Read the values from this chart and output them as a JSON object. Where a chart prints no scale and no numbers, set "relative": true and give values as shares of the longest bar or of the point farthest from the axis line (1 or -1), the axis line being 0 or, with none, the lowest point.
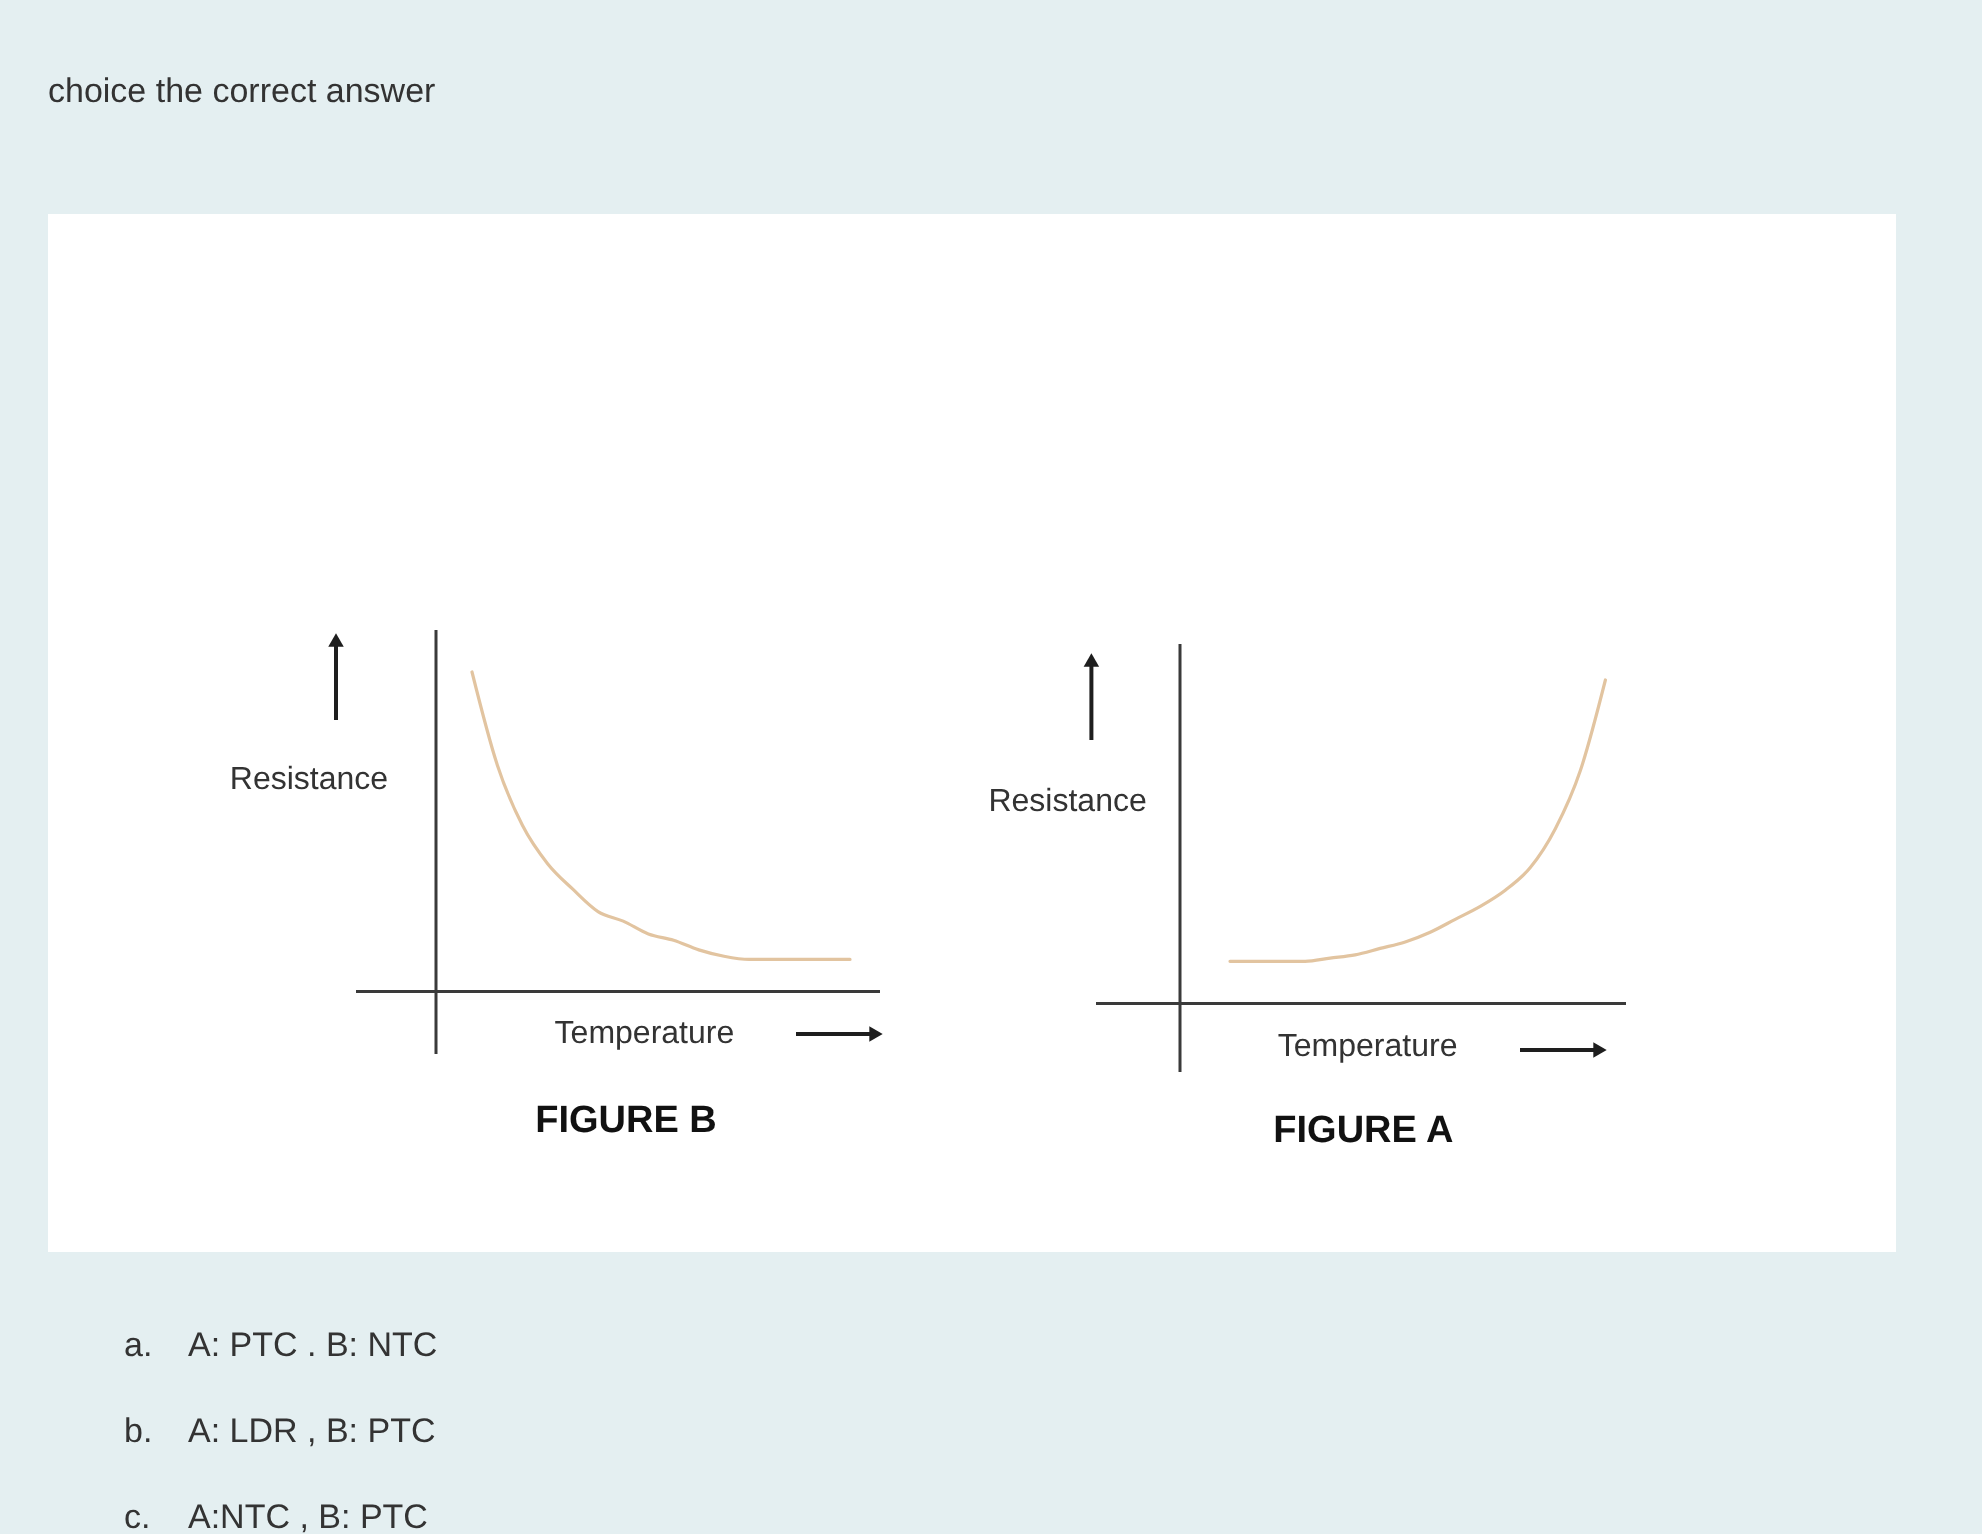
{
  "chart_data": [
    {
      "type": "other",
      "annotations": [
        "choice the correct answer"
      ]
    },
    {
      "type": "line",
      "title": "FIGURE B",
      "xlabel": "Temperature",
      "ylabel": "Resistance",
      "relative": true,
      "categories": [
        null,
        null,
        null,
        null,
        null,
        null,
        null,
        null,
        null,
        null,
        null,
        null,
        null,
        null,
        null,
        null
      ],
      "series": [
        {
          "color": "#e2c4a0",
          "values": [
            1.0,
            0.71,
            0.52,
            0.4,
            0.32,
            0.25,
            0.22,
            0.18,
            0.16,
            0.13,
            0.11,
            0.1,
            0.1,
            0.1,
            0.1,
            0.1
          ]
        }
      ]
    },
    {
      "type": "line",
      "title": "FIGURE A",
      "xlabel": "Temperature",
      "ylabel": "Resistance",
      "relative": true,
      "categories": [
        null,
        null,
        null,
        null,
        null,
        null,
        null,
        null,
        null,
        null,
        null,
        null,
        null,
        null,
        null,
        null
      ],
      "series": [
        {
          "color": "#e2c4a0",
          "values": [
            0.13,
            0.13,
            0.13,
            0.13,
            0.14,
            0.15,
            0.17,
            0.19,
            0.22,
            0.26,
            0.3,
            0.35,
            0.42,
            0.54,
            0.72,
            1.0
          ]
        }
      ]
    },
    {
      "type": "other",
      "annotations": [
        "a.",
        "A: PTC . B: NTC",
        "b.",
        "A: LDR , B: PTC",
        "c.",
        "A:NTC , B: PTC"
      ]
    }
  ]
}
